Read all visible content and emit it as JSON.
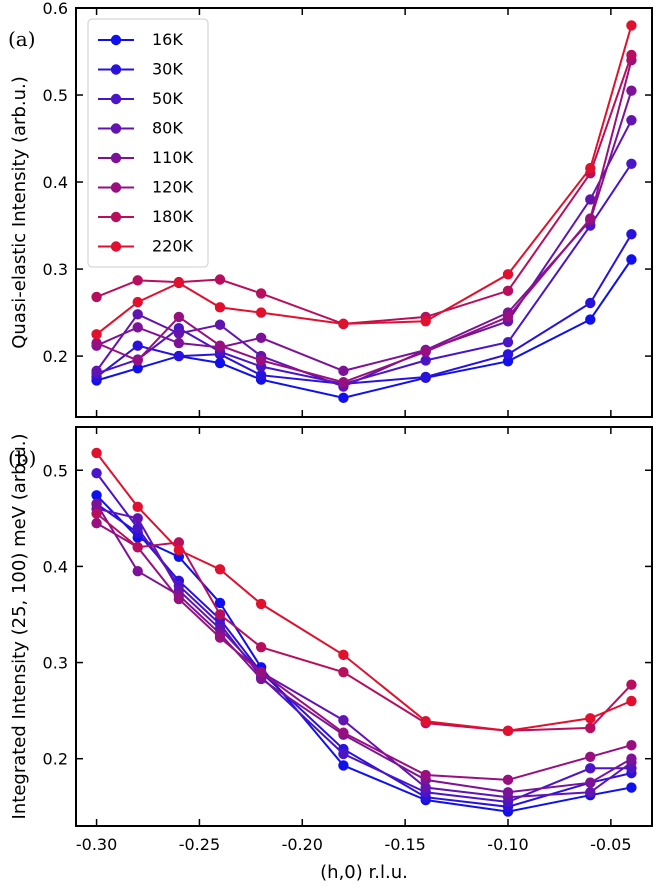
{
  "chart_data": [
    {
      "type": "line",
      "panel_label": "(a)",
      "ylabel": "Quasi-elastic Intensity (arb.u.)",
      "xlabel": "",
      "xlim": [
        -0.31,
        -0.03
      ],
      "ylim": [
        0.13,
        0.6
      ],
      "yticks": [
        "0.2",
        "0.3",
        "0.4",
        "0.5",
        "0.6"
      ],
      "ytick_values": [
        0.2,
        0.3,
        0.4,
        0.5,
        0.6
      ],
      "xticks": [],
      "x": [
        -0.3,
        -0.28,
        -0.26,
        -0.24,
        -0.22,
        -0.18,
        -0.14,
        -0.1,
        -0.06,
        -0.04
      ],
      "legend": "top-left",
      "grid": false,
      "series": [
        {
          "name": "16K",
          "color": "#1010ee",
          "values": [
            0.172,
            0.186,
            0.2,
            0.192,
            0.173,
            0.152,
            0.175,
            0.194,
            0.242,
            0.311
          ]
        },
        {
          "name": "30K",
          "color": "#2a12dd",
          "values": [
            0.176,
            0.212,
            0.2,
            0.202,
            0.178,
            0.168,
            0.176,
            0.202,
            0.261,
            0.34
          ]
        },
        {
          "name": "50K",
          "color": "#4a14c8",
          "values": [
            0.18,
            0.196,
            0.232,
            0.205,
            0.188,
            0.168,
            0.195,
            0.216,
            0.35,
            0.421
          ]
        },
        {
          "name": "80K",
          "color": "#6214b0",
          "values": [
            0.183,
            0.248,
            0.226,
            0.236,
            0.2,
            0.165,
            0.207,
            0.24,
            0.38,
            0.471
          ]
        },
        {
          "name": "110K",
          "color": "#7c1298",
          "values": [
            0.212,
            0.233,
            0.215,
            0.21,
            0.221,
            0.183,
            0.207,
            0.25,
            0.356,
            0.505
          ]
        },
        {
          "name": "120K",
          "color": "#981080",
          "values": [
            0.215,
            0.195,
            0.245,
            0.212,
            0.195,
            0.17,
            0.205,
            0.245,
            0.358,
            0.54
          ]
        },
        {
          "name": "180K",
          "color": "#b80e5e",
          "values": [
            0.268,
            0.287,
            0.285,
            0.288,
            0.272,
            0.237,
            0.245,
            0.275,
            0.41,
            0.546
          ]
        },
        {
          "name": "220K",
          "color": "#e0102e",
          "values": [
            0.225,
            0.262,
            0.284,
            0.256,
            0.25,
            0.237,
            0.24,
            0.294,
            0.416,
            0.58
          ]
        }
      ]
    },
    {
      "type": "line",
      "panel_label": "(b)",
      "ylabel": "Integrated Intensity (25, 100) meV (arb.u.)",
      "xlabel": "(h,0) r.l.u.",
      "xlim": [
        -0.31,
        -0.03
      ],
      "ylim": [
        0.13,
        0.545
      ],
      "yticks": [
        "0.2",
        "0.3",
        "0.4",
        "0.5"
      ],
      "ytick_values": [
        0.2,
        0.3,
        0.4,
        0.5
      ],
      "xticks": [
        "-0.30",
        "-0.25",
        "-0.20",
        "-0.15",
        "-0.10",
        "-0.05"
      ],
      "xtick_values": [
        -0.3,
        -0.25,
        -0.2,
        -0.15,
        -0.1,
        -0.05
      ],
      "x": [
        -0.3,
        -0.28,
        -0.26,
        -0.24,
        -0.22,
        -0.18,
        -0.14,
        -0.1,
        -0.06,
        -0.04
      ],
      "grid": false,
      "series": [
        {
          "name": "16K",
          "color": "#1010ee",
          "values": [
            0.474,
            0.43,
            0.41,
            0.362,
            0.295,
            0.193,
            0.157,
            0.145,
            0.162,
            0.17
          ]
        },
        {
          "name": "30K",
          "color": "#2a12dd",
          "values": [
            0.465,
            0.435,
            0.385,
            0.345,
            0.29,
            0.21,
            0.16,
            0.15,
            0.175,
            0.185
          ]
        },
        {
          "name": "50K",
          "color": "#4a14c8",
          "values": [
            0.497,
            0.44,
            0.38,
            0.34,
            0.285,
            0.205,
            0.165,
            0.155,
            0.19,
            0.19
          ]
        },
        {
          "name": "80K",
          "color": "#6214b0",
          "values": [
            0.46,
            0.45,
            0.375,
            0.335,
            0.29,
            0.24,
            0.17,
            0.16,
            0.165,
            0.196
          ]
        },
        {
          "name": "110K",
          "color": "#7c1298",
          "values": [
            0.465,
            0.395,
            0.37,
            0.33,
            0.283,
            0.225,
            0.178,
            0.165,
            0.175,
            0.2
          ]
        },
        {
          "name": "120K",
          "color": "#981080",
          "values": [
            0.445,
            0.42,
            0.366,
            0.326,
            0.29,
            0.227,
            0.183,
            0.178,
            0.202,
            0.214
          ]
        },
        {
          "name": "180K",
          "color": "#b80e5e",
          "values": [
            0.455,
            0.42,
            0.425,
            0.35,
            0.316,
            0.29,
            0.237,
            0.229,
            0.232,
            0.277
          ]
        },
        {
          "name": "220K",
          "color": "#e0102e",
          "values": [
            0.518,
            0.462,
            0.417,
            0.397,
            0.361,
            0.308,
            0.239,
            0.229,
            0.242,
            0.26
          ]
        }
      ]
    }
  ]
}
